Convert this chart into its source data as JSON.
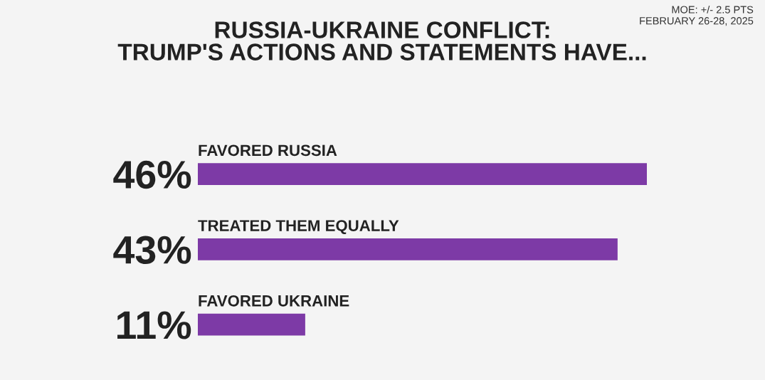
{
  "chart_data": {
    "type": "bar",
    "orientation": "horizontal",
    "title": "RUSSIA-UKRAINE CONFLICT:\nTRUMP'S ACTIONS AND STATEMENTS HAVE...",
    "categories": [
      "FAVORED RUSSIA",
      "TREATED THEM EQUALLY",
      "FAVORED UKRAINE"
    ],
    "values": [
      46,
      43,
      11
    ],
    "value_labels": [
      "46%",
      "43%",
      "11%"
    ],
    "color": "#7d3aa6",
    "annotations": [
      "MOE: +/- 2.5 PTS\nFEBRUARY 26-28, 2025"
    ]
  }
}
